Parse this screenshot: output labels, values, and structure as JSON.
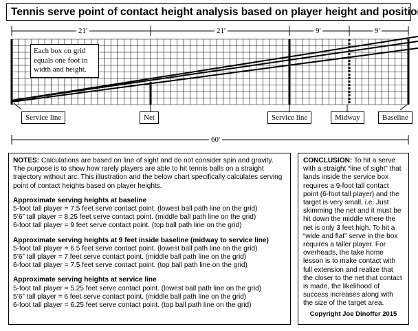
{
  "title": "Tennis serve point of contact height analysis based on player height and position.",
  "dimensions": {
    "seg1": "21'",
    "seg2": "21'",
    "seg3": "9'",
    "seg4": "9'",
    "total": "60'"
  },
  "grid_note": "Each box on grid equals one foot in width and height.",
  "court_labels": {
    "service_line_left": "Service line",
    "net": "Net",
    "service_line_right": "Service line",
    "midway": "Midway",
    "baseline": "Baseline"
  },
  "notes": {
    "label": "NOTES:",
    "intro": "Calculations are based on line of sight and do not consider spin and gravity. The purpose is to show how rarely players are able to hit tennis balls on a straight trajectory without arc. This illustration and the below chart specifically calculates serving point of contact heights based on player heights.",
    "sections": [
      {
        "heading": "Approximate serving heights at baseline",
        "lines": [
          "5-foot tall player = 7.5 feet serve contact point. (lowest ball path line on the grid)",
          "5’6” tall player = 8.25 feet serve contact point. (middle ball path line on the grid)",
          "6-foot tall player = 9 feet serve contact point. (top ball path line on the grid)"
        ]
      },
      {
        "heading": "Approximate serving heights at 9 feet inside baseline (midway to service line)",
        "lines": [
          "5-foot tall player = 6.5 feet serve contact point. (lowest ball path line on the grid)",
          "5’6” tall player = 7 feet serve contact point. (middle ball path line on the grid)",
          "6-foot tall player = 7.5 feet serve contact point. (top ball path line on the grid)"
        ]
      },
      {
        "heading": "Approximate serving heights at service line",
        "lines": [
          "5-foot tall player = 5.25 feet serve contact point. (lowest ball path line on the grid)",
          "5’6” tall player = 6 feet serve contact point. (middle ball path line on the grid)",
          "6-foot tall player = 6.25 feet serve contact point. (top ball path line on the grid)"
        ]
      }
    ]
  },
  "conclusion": {
    "label": "CONCLUSION:",
    "text": "To hit a serve with a straight “line of sight” that lands inside the service box requires a 9-foot tall contact point (6-foot tall player) and the target is very small, i.e. Just skimming the net and it must be hit down the middle where the net is only 3 feet high. To hit a “wide and flat” serve in the box requires a taller player. For overheads, the take home lesson is to make contact with full extension and realize that the closer to the net that contact is made, the likelihood of success increases along with the size of the target area."
  },
  "copyright": "Copyright Joe Dinoffer 2015"
}
